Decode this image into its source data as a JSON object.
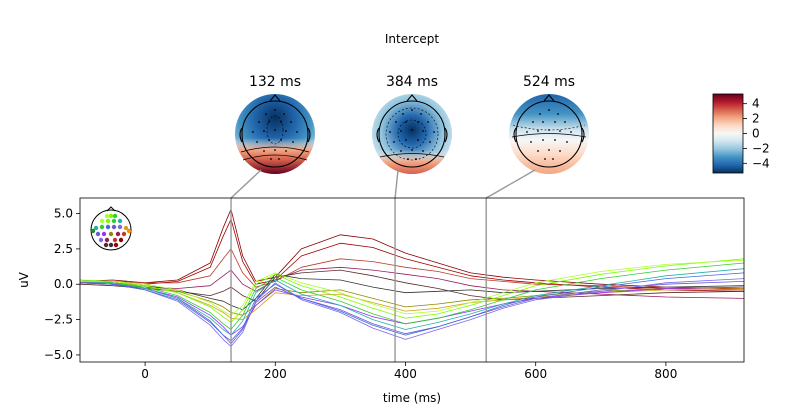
{
  "figure": {
    "title": "Intercept",
    "topomap_times": [
      "132 ms",
      "384 ms",
      "524 ms"
    ]
  },
  "colorbar": {
    "ticks": [
      "4",
      "2",
      "0",
      "−2",
      "−4"
    ],
    "cmap": [
      "#67001f",
      "#b2182b",
      "#d6604d",
      "#f4a582",
      "#fddbc7",
      "#f7f7f7",
      "#d1e5f0",
      "#92c5de",
      "#4393c3",
      "#2166ac",
      "#053061"
    ]
  },
  "chart_data": {
    "type": "line",
    "xlabel": "time (ms)",
    "ylabel": "uV",
    "xlim": [
      -100,
      920
    ],
    "ylim": [
      -5.5,
      6.1
    ],
    "xticks": [
      0,
      200,
      400,
      600,
      800
    ],
    "yticks": [
      -5.0,
      -2.5,
      0.0,
      2.5,
      5.0
    ],
    "xtick_labels": [
      "0",
      "200",
      "400",
      "600",
      "800"
    ],
    "ytick_labels": [
      "−5.0",
      "−2.5",
      "0.0",
      "2.5",
      "5.0"
    ],
    "markers_ms": [
      132,
      384,
      524
    ],
    "x": [
      -100,
      -50,
      0,
      50,
      100,
      120,
      132,
      150,
      170,
      200,
      240,
      300,
      350,
      400,
      450,
      500,
      550,
      600,
      700,
      800,
      920
    ],
    "series": [
      {
        "color": "#8b0000",
        "values": [
          0.2,
          0.3,
          0.1,
          0.3,
          1.5,
          4.0,
          5.3,
          2.0,
          0.2,
          0.5,
          2.5,
          3.5,
          3.2,
          2.2,
          1.5,
          0.8,
          0.5,
          0.3,
          0.0,
          -0.2,
          -0.3
        ]
      },
      {
        "color": "#a00000",
        "values": [
          0.1,
          0.2,
          0.0,
          0.2,
          1.2,
          3.4,
          4.6,
          1.6,
          0.0,
          0.3,
          2.0,
          2.9,
          2.6,
          1.8,
          1.2,
          0.6,
          0.3,
          0.1,
          -0.2,
          -0.4,
          -0.5
        ]
      },
      {
        "color": "#c0392b",
        "values": [
          0.2,
          0.2,
          0.1,
          0.1,
          0.6,
          1.8,
          2.5,
          0.8,
          -0.2,
          0.2,
          1.2,
          1.8,
          1.6,
          1.2,
          0.9,
          0.4,
          0.2,
          0.0,
          -0.1,
          -0.3,
          -0.4
        ]
      },
      {
        "color": "#9a1b5a",
        "values": [
          0.1,
          0.0,
          -0.2,
          -0.3,
          -0.1,
          0.6,
          1.0,
          0.0,
          -0.5,
          0.3,
          1.0,
          1.2,
          1.0,
          0.7,
          0.4,
          -0.1,
          -0.4,
          -0.5,
          -0.7,
          -0.9,
          -1.0
        ]
      },
      {
        "color": "#5a2a2a",
        "values": [
          0.0,
          -0.1,
          -0.3,
          -0.5,
          -0.8,
          -0.5,
          -0.2,
          -0.8,
          -1.2,
          0.5,
          0.8,
          1.0,
          0.6,
          0.1,
          -0.3,
          -0.8,
          -1.1,
          -1.0,
          -0.8,
          -0.6,
          -0.5
        ]
      },
      {
        "color": "#333333",
        "values": [
          0.2,
          0.1,
          -0.1,
          -0.4,
          -1.0,
          -1.2,
          -1.5,
          -1.8,
          -1.0,
          0.7,
          0.4,
          0.3,
          -0.2,
          -0.6,
          -0.5,
          -0.4,
          -0.6,
          -0.5,
          -0.3,
          -0.2,
          -0.1
        ]
      },
      {
        "color": "#8b8b00",
        "values": [
          0.1,
          0.0,
          -0.2,
          -0.5,
          -1.2,
          -1.6,
          -2.0,
          -2.2,
          -1.5,
          -0.3,
          -0.6,
          -0.4,
          -1.0,
          -1.6,
          -1.4,
          -1.1,
          -1.0,
          -0.8,
          -0.5,
          -0.3,
          -0.2
        ]
      },
      {
        "color": "#d4a017",
        "values": [
          0.2,
          0.1,
          -0.1,
          -0.6,
          -1.5,
          -2.0,
          -2.4,
          -2.5,
          -1.8,
          -0.6,
          -0.8,
          -0.7,
          -1.3,
          -1.9,
          -1.7,
          -1.3,
          -1.1,
          -0.9,
          -0.6,
          -0.4,
          -0.3
        ]
      },
      {
        "color": "#9b30ff",
        "values": [
          0.1,
          0.0,
          -0.3,
          -0.9,
          -2.2,
          -3.0,
          -3.6,
          -3.0,
          -1.5,
          -0.4,
          -0.9,
          -1.5,
          -2.3,
          -2.8,
          -2.4,
          -1.9,
          -1.4,
          -1.0,
          -0.6,
          -0.3,
          -0.2
        ]
      },
      {
        "color": "#6a5acd",
        "values": [
          0.2,
          0.1,
          -0.3,
          -1.0,
          -2.6,
          -3.6,
          -4.2,
          -3.2,
          -1.3,
          -0.2,
          -1.0,
          -1.8,
          -2.8,
          -3.5,
          -3.0,
          -2.3,
          -1.6,
          -1.0,
          -0.4,
          0.0,
          0.2
        ]
      },
      {
        "color": "#7b68ee",
        "values": [
          0.2,
          0.0,
          -0.4,
          -1.2,
          -2.9,
          -3.9,
          -4.4,
          -3.4,
          -1.2,
          0.1,
          -1.1,
          -2.0,
          -3.1,
          -3.9,
          -3.2,
          -2.5,
          -1.7,
          -1.1,
          -0.5,
          0.1,
          0.4
        ]
      },
      {
        "color": "#4169e1",
        "values": [
          0.1,
          0.0,
          -0.4,
          -1.1,
          -2.7,
          -3.6,
          -4.0,
          -3.1,
          -1.0,
          0.0,
          -1.0,
          -1.9,
          -2.9,
          -3.6,
          -3.0,
          -2.3,
          -1.5,
          -0.9,
          -0.2,
          0.4,
          0.8
        ]
      },
      {
        "color": "#20b2aa",
        "values": [
          0.2,
          0.1,
          -0.3,
          -1.0,
          -2.4,
          -3.2,
          -3.6,
          -2.6,
          -0.6,
          0.3,
          -0.7,
          -1.5,
          -2.5,
          -3.2,
          -2.7,
          -2.1,
          -1.4,
          -0.8,
          -0.1,
          0.6,
          1.1
        ]
      },
      {
        "color": "#32cd32",
        "values": [
          0.3,
          0.1,
          -0.2,
          -0.8,
          -2.0,
          -2.8,
          -3.2,
          -2.2,
          -0.3,
          0.5,
          -0.4,
          -1.2,
          -2.1,
          -2.8,
          -2.4,
          -1.8,
          -1.1,
          -0.4,
          0.4,
          1.0,
          1.5
        ]
      },
      {
        "color": "#7cfc00",
        "values": [
          0.3,
          0.2,
          -0.1,
          -0.6,
          -1.6,
          -2.3,
          -2.7,
          -1.8,
          0.0,
          0.7,
          -0.1,
          -0.9,
          -1.7,
          -2.4,
          -2.1,
          -1.5,
          -0.8,
          -0.1,
          0.7,
          1.3,
          1.8
        ]
      },
      {
        "color": "#adff2f",
        "values": [
          0.2,
          0.2,
          0.0,
          -0.4,
          -1.3,
          -1.9,
          -2.2,
          -1.5,
          0.2,
          0.8,
          0.1,
          -0.6,
          -1.4,
          -2.1,
          -1.9,
          -1.3,
          -0.6,
          0.1,
          0.9,
          1.4,
          1.7
        ]
      }
    ]
  }
}
